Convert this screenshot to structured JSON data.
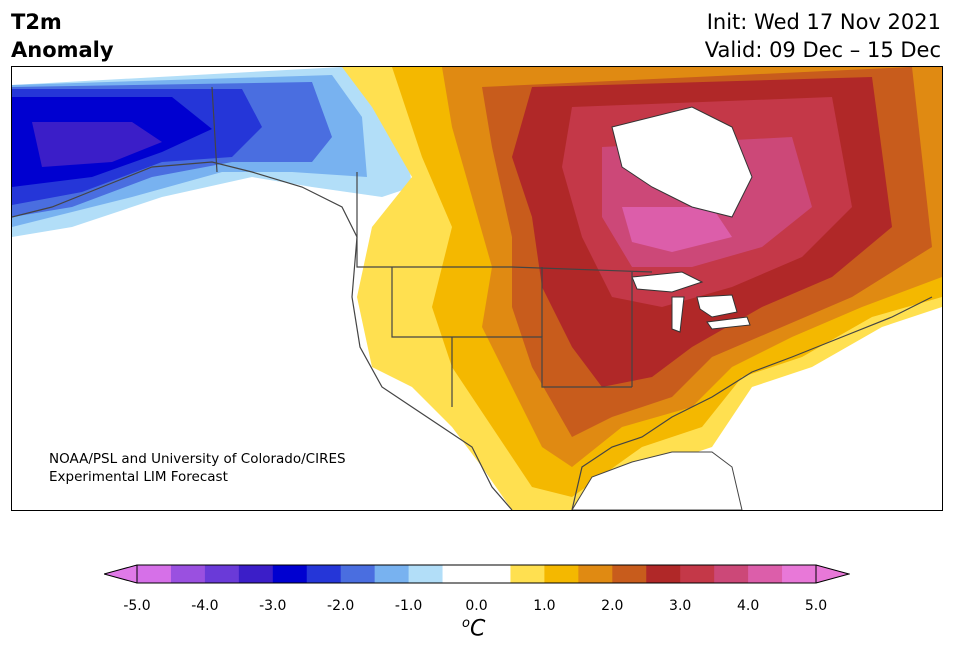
{
  "header": {
    "title_line1": "T2m",
    "title_line2": "Anomaly",
    "init_text": "Init: Wed 17 Nov 2021",
    "valid_text": "Valid: 09 Dec – 15 Dec"
  },
  "map": {
    "credit_line1": "NOAA/PSL and University of Colorado/CIRES",
    "credit_line2": "Experimental LIM Forecast",
    "region": "North America",
    "anomaly_pattern": "cold over Alaska/Yukon, warm over central and eastern North America, strongest around Hudson Bay and Great Lakes"
  },
  "colorbar": {
    "unit_label": "C",
    "unit_prefix": "o",
    "tick_labels": [
      "-5.0",
      "-4.0",
      "-3.0",
      "-2.0",
      "-1.0",
      "0.0",
      "1.0",
      "2.0",
      "3.0",
      "4.0",
      "5.0"
    ],
    "colors": [
      "#d670e8",
      "#9a50e0",
      "#6a3ad8",
      "#3b1ec8",
      "#0000d0",
      "#2536d8",
      "#4a6ee0",
      "#78b2f0",
      "#b2def8",
      "#ffffff",
      "#ffffff",
      "#ffe050",
      "#f4b800",
      "#e08a12",
      "#c85c1c",
      "#b02828",
      "#c43848",
      "#cc4878",
      "#dc5eaa",
      "#e878d8"
    ],
    "extend_low_color": "#e07ae8",
    "extend_high_color": "#e878d8"
  }
}
